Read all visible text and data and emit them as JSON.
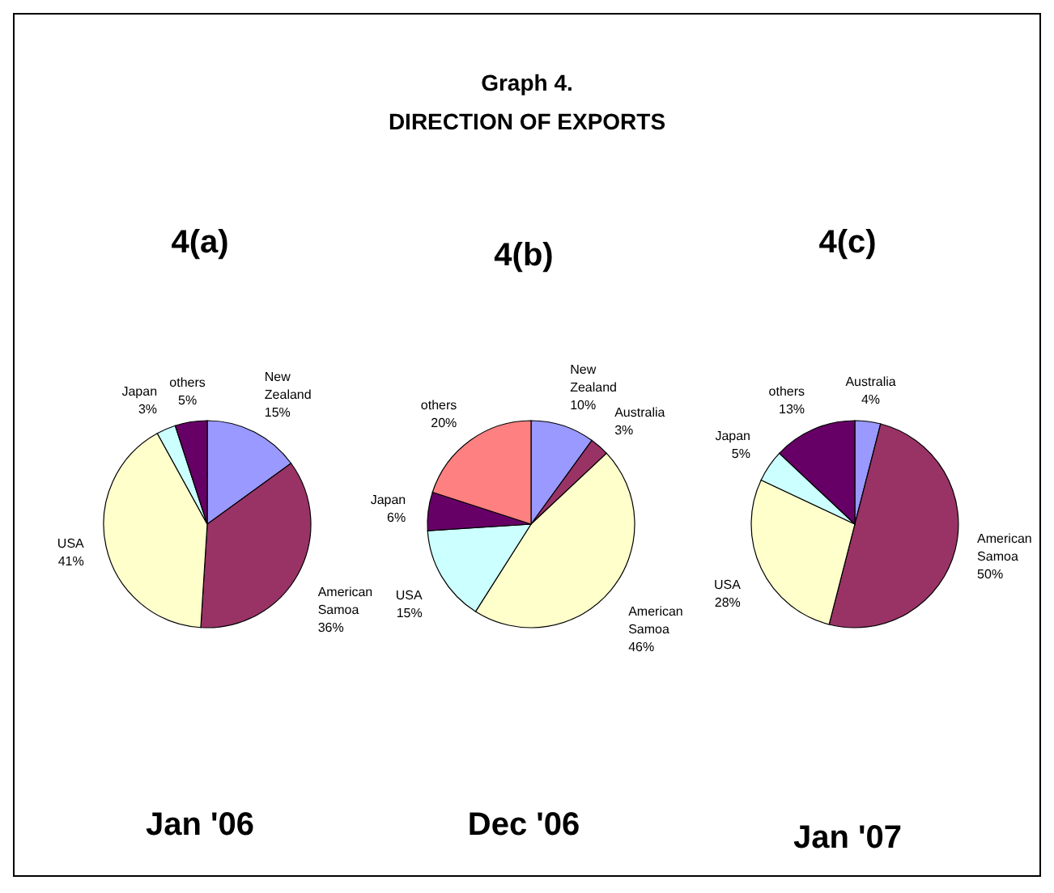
{
  "chart_data": [
    {
      "type": "pie",
      "title": "4(a)",
      "xlabel": "Jan '06",
      "annotations": [
        "Graph 4.",
        "DIRECTION OF EXPORTS"
      ],
      "categories": [
        "New Zealand",
        "American Samoa",
        "USA",
        "Japan",
        "others"
      ],
      "values": [
        15,
        36,
        41,
        3,
        5
      ],
      "value_labels": [
        "15%",
        "36%",
        "41%",
        "3%",
        "5%"
      ],
      "colors": [
        "#9999ff",
        "#993366",
        "#ffffcc",
        "#ccffff",
        "#660066"
      ]
    },
    {
      "type": "pie",
      "title": "4(b)",
      "xlabel": "Dec '06",
      "categories": [
        "New Zealand",
        "Australia",
        "American Samoa",
        "USA",
        "Japan",
        "others"
      ],
      "values": [
        10,
        3,
        46,
        15,
        6,
        20
      ],
      "value_labels": [
        "10%",
        "3%",
        "46%",
        "15%",
        "6%",
        "20%"
      ],
      "colors": [
        "#9999ff",
        "#993366",
        "#ffffcc",
        "#ccffff",
        "#660066",
        "#ff8080"
      ]
    },
    {
      "type": "pie",
      "title": "4(c)",
      "xlabel": "Jan '07",
      "categories": [
        "Australia",
        "American Samoa",
        "USA",
        "Japan",
        "others"
      ],
      "values": [
        4,
        50,
        28,
        5,
        13
      ],
      "value_labels": [
        "4%",
        "50%",
        "28%",
        "5%",
        "13%"
      ],
      "colors": [
        "#9999ff",
        "#993366",
        "#ffffcc",
        "#ccffff",
        "#660066"
      ]
    }
  ]
}
